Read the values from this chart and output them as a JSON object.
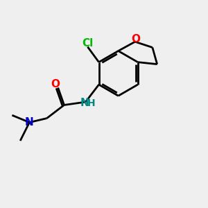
{
  "bg_color": "#efefef",
  "bond_color": "#000000",
  "cl_color": "#00bb00",
  "o_color": "#ff0000",
  "n_color": "#0000cc",
  "nh_color": "#008888",
  "line_width": 2.0,
  "fig_width": 3.0,
  "fig_height": 3.0,
  "xlim": [
    0,
    10
  ],
  "ylim": [
    0,
    10
  ]
}
